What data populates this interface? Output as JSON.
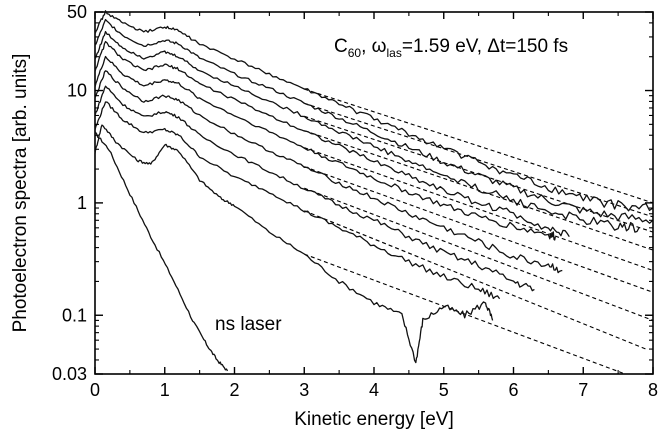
{
  "chart_data": {
    "type": "line",
    "xlabel": "Kinetic energy  [eV]",
    "ylabel": "Photoelectron spectra [arb. units]",
    "xlim": [
      0,
      8
    ],
    "ylim": [
      0.03,
      50
    ],
    "yscale": "log",
    "x_ticks": [
      0,
      1,
      2,
      3,
      4,
      5,
      6,
      7,
      8
    ],
    "x_tick_labels": [
      "0",
      "1",
      "2",
      "3",
      "4",
      "5",
      "6",
      "7",
      "8"
    ],
    "y_ticks": [
      0.03,
      0.1,
      1,
      10,
      50
    ],
    "y_tick_labels": [
      "0.03",
      "0.1",
      "1",
      "10",
      "50"
    ],
    "annotation": {
      "prefix": "C",
      "prefix_sub": "60",
      "omega": "ω",
      "omega_sub": "las",
      "middle": "=1.59 eV, ",
      "delta": "Δt=150 fs"
    },
    "ns_label": "ns laser",
    "series": [
      {
        "points": [
          [
            0,
            4.2
          ],
          [
            0.2,
            3.0
          ],
          [
            0.5,
            1.2
          ],
          [
            0.8,
            0.5
          ],
          [
            1.1,
            0.22
          ],
          [
            1.4,
            0.09
          ],
          [
            1.6,
            0.055
          ],
          [
            1.75,
            0.04
          ],
          [
            1.9,
            0.032
          ]
        ]
      },
      {
        "points": [
          [
            0,
            2.8
          ],
          [
            0.1,
            5.0
          ],
          [
            0.3,
            3.5
          ],
          [
            0.6,
            2.4
          ],
          [
            0.8,
            2.2
          ],
          [
            1.0,
            3.3
          ],
          [
            1.2,
            2.9
          ],
          [
            1.5,
            1.6
          ],
          [
            1.8,
            1.1
          ],
          [
            2.0,
            0.95
          ],
          [
            2.5,
            0.55
          ],
          [
            3.0,
            0.35
          ],
          [
            3.5,
            0.2
          ],
          [
            4.0,
            0.13
          ],
          [
            4.4,
            0.1
          ],
          [
            4.6,
            0.038
          ],
          [
            4.7,
            0.09
          ],
          [
            5.0,
            0.12
          ],
          [
            5.3,
            0.1
          ],
          [
            5.6,
            0.13
          ],
          [
            5.7,
            0.09
          ]
        ]
      },
      {
        "points": [
          [
            0,
            4.5
          ],
          [
            0.15,
            8.0
          ],
          [
            0.4,
            5.5
          ],
          [
            0.7,
            4.2
          ],
          [
            1.0,
            4.5
          ],
          [
            1.2,
            4.0
          ],
          [
            1.5,
            2.6
          ],
          [
            2.0,
            1.7
          ],
          [
            2.5,
            1.25
          ],
          [
            3.0,
            0.85
          ],
          [
            3.5,
            0.6
          ],
          [
            4.0,
            0.42
          ],
          [
            4.5,
            0.3
          ],
          [
            5.0,
            0.22
          ],
          [
            5.5,
            0.17
          ],
          [
            5.8,
            0.14
          ]
        ]
      },
      {
        "points": [
          [
            0,
            6.0
          ],
          [
            0.15,
            11.0
          ],
          [
            0.4,
            7.5
          ],
          [
            0.7,
            5.8
          ],
          [
            1.0,
            6.5
          ],
          [
            1.2,
            5.8
          ],
          [
            1.5,
            4.0
          ],
          [
            2.0,
            2.7
          ],
          [
            2.5,
            1.9
          ],
          [
            3.0,
            1.35
          ],
          [
            3.5,
            0.95
          ],
          [
            4.0,
            0.7
          ],
          [
            4.5,
            0.5
          ],
          [
            5.0,
            0.36
          ],
          [
            5.5,
            0.28
          ],
          [
            6.0,
            0.2
          ],
          [
            6.3,
            0.17
          ]
        ]
      },
      {
        "points": [
          [
            0,
            8.5
          ],
          [
            0.15,
            15.0
          ],
          [
            0.4,
            10.5
          ],
          [
            0.7,
            8.0
          ],
          [
            1.0,
            9.0
          ],
          [
            1.2,
            8.2
          ],
          [
            1.5,
            6.0
          ],
          [
            2.0,
            4.1
          ],
          [
            2.5,
            2.9
          ],
          [
            3.0,
            2.1
          ],
          [
            3.5,
            1.5
          ],
          [
            4.0,
            1.1
          ],
          [
            4.5,
            0.8
          ],
          [
            5.0,
            0.6
          ],
          [
            5.5,
            0.45
          ],
          [
            6.0,
            0.33
          ],
          [
            6.5,
            0.28
          ],
          [
            6.7,
            0.25
          ]
        ]
      },
      {
        "points": [
          [
            0,
            11.0
          ],
          [
            0.15,
            20.0
          ],
          [
            0.4,
            14.0
          ],
          [
            0.7,
            11.0
          ],
          [
            1.0,
            12.5
          ],
          [
            1.2,
            11.5
          ],
          [
            1.5,
            8.5
          ],
          [
            2.0,
            6.0
          ],
          [
            2.5,
            4.3
          ],
          [
            3.0,
            3.1
          ],
          [
            3.5,
            2.25
          ],
          [
            4.0,
            1.65
          ],
          [
            4.5,
            1.25
          ],
          [
            5.0,
            0.95
          ],
          [
            5.5,
            0.75
          ],
          [
            6.0,
            0.62
          ],
          [
            6.5,
            0.52
          ],
          [
            6.6,
            0.5
          ]
        ]
      },
      {
        "points": [
          [
            0,
            15.0
          ],
          [
            0.15,
            27.0
          ],
          [
            0.4,
            19.0
          ],
          [
            0.7,
            15.0
          ],
          [
            1.0,
            17.0
          ],
          [
            1.2,
            15.5
          ],
          [
            1.5,
            11.5
          ],
          [
            2.0,
            8.3
          ],
          [
            2.5,
            6.0
          ],
          [
            3.0,
            4.4
          ],
          [
            3.5,
            3.2
          ],
          [
            4.0,
            2.35
          ],
          [
            4.5,
            1.75
          ],
          [
            5.0,
            1.3
          ],
          [
            5.5,
            1.0
          ],
          [
            6.0,
            0.8
          ],
          [
            6.5,
            0.6
          ],
          [
            6.8,
            0.5
          ]
        ]
      },
      {
        "points": [
          [
            0,
            19.0
          ],
          [
            0.15,
            33.0
          ],
          [
            0.4,
            24.0
          ],
          [
            0.7,
            19.5
          ],
          [
            1.0,
            22.0
          ],
          [
            1.2,
            20.0
          ],
          [
            1.5,
            15.0
          ],
          [
            2.0,
            11.0
          ],
          [
            2.5,
            8.0
          ],
          [
            3.0,
            5.9
          ],
          [
            3.5,
            4.3
          ],
          [
            4.0,
            3.2
          ],
          [
            4.5,
            2.35
          ],
          [
            5.0,
            1.75
          ],
          [
            5.5,
            1.35
          ],
          [
            6.0,
            1.05
          ],
          [
            6.5,
            0.85
          ],
          [
            7.0,
            0.7
          ],
          [
            7.5,
            0.62
          ],
          [
            7.8,
            0.6
          ]
        ]
      },
      {
        "points": [
          [
            0,
            25.0
          ],
          [
            0.15,
            42.0
          ],
          [
            0.4,
            31.0
          ],
          [
            0.7,
            25.0
          ],
          [
            1.0,
            28.0
          ],
          [
            1.2,
            26.0
          ],
          [
            1.5,
            19.5
          ],
          [
            2.0,
            14.0
          ],
          [
            2.5,
            10.5
          ],
          [
            3.0,
            7.7
          ],
          [
            3.5,
            5.7
          ],
          [
            4.0,
            4.2
          ],
          [
            4.5,
            3.1
          ],
          [
            5.0,
            2.3
          ],
          [
            5.5,
            1.75
          ],
          [
            6.0,
            1.35
          ],
          [
            6.5,
            1.05
          ],
          [
            7.0,
            0.85
          ],
          [
            7.5,
            0.75
          ],
          [
            8.0,
            0.7
          ]
        ]
      },
      {
        "points": [
          [
            0,
            33.0
          ],
          [
            0.15,
            50.0
          ],
          [
            0.4,
            40.0
          ],
          [
            0.7,
            33.0
          ],
          [
            1.0,
            37.0
          ],
          [
            1.2,
            34.0
          ],
          [
            1.5,
            26.0
          ],
          [
            2.0,
            19.0
          ],
          [
            2.5,
            14.0
          ],
          [
            3.0,
            10.3
          ],
          [
            3.5,
            7.6
          ],
          [
            4.0,
            5.6
          ],
          [
            4.5,
            4.1
          ],
          [
            5.0,
            3.1
          ],
          [
            5.5,
            2.3
          ],
          [
            6.0,
            1.75
          ],
          [
            6.5,
            1.35
          ],
          [
            7.0,
            1.1
          ],
          [
            7.5,
            0.95
          ],
          [
            8.0,
            0.9
          ]
        ]
      }
    ],
    "fits": [
      {
        "x": [
          3.0,
          7.6
        ],
        "y": [
          0.35,
          0.03
        ]
      },
      {
        "x": [
          3.0,
          7.9
        ],
        "y": [
          0.85,
          0.05
        ]
      },
      {
        "x": [
          3.0,
          8.0
        ],
        "y": [
          1.35,
          0.09
        ]
      },
      {
        "x": [
          3.0,
          8.0
        ],
        "y": [
          2.1,
          0.16
        ]
      },
      {
        "x": [
          3.0,
          8.0
        ],
        "y": [
          3.1,
          0.25
        ]
      },
      {
        "x": [
          3.0,
          8.0
        ],
        "y": [
          4.4,
          0.38
        ]
      },
      {
        "x": [
          3.0,
          8.0
        ],
        "y": [
          5.9,
          0.55
        ]
      },
      {
        "x": [
          3.0,
          8.0
        ],
        "y": [
          7.7,
          0.75
        ]
      },
      {
        "x": [
          3.0,
          8.0
        ],
        "y": [
          10.3,
          1.0
        ]
      }
    ]
  }
}
